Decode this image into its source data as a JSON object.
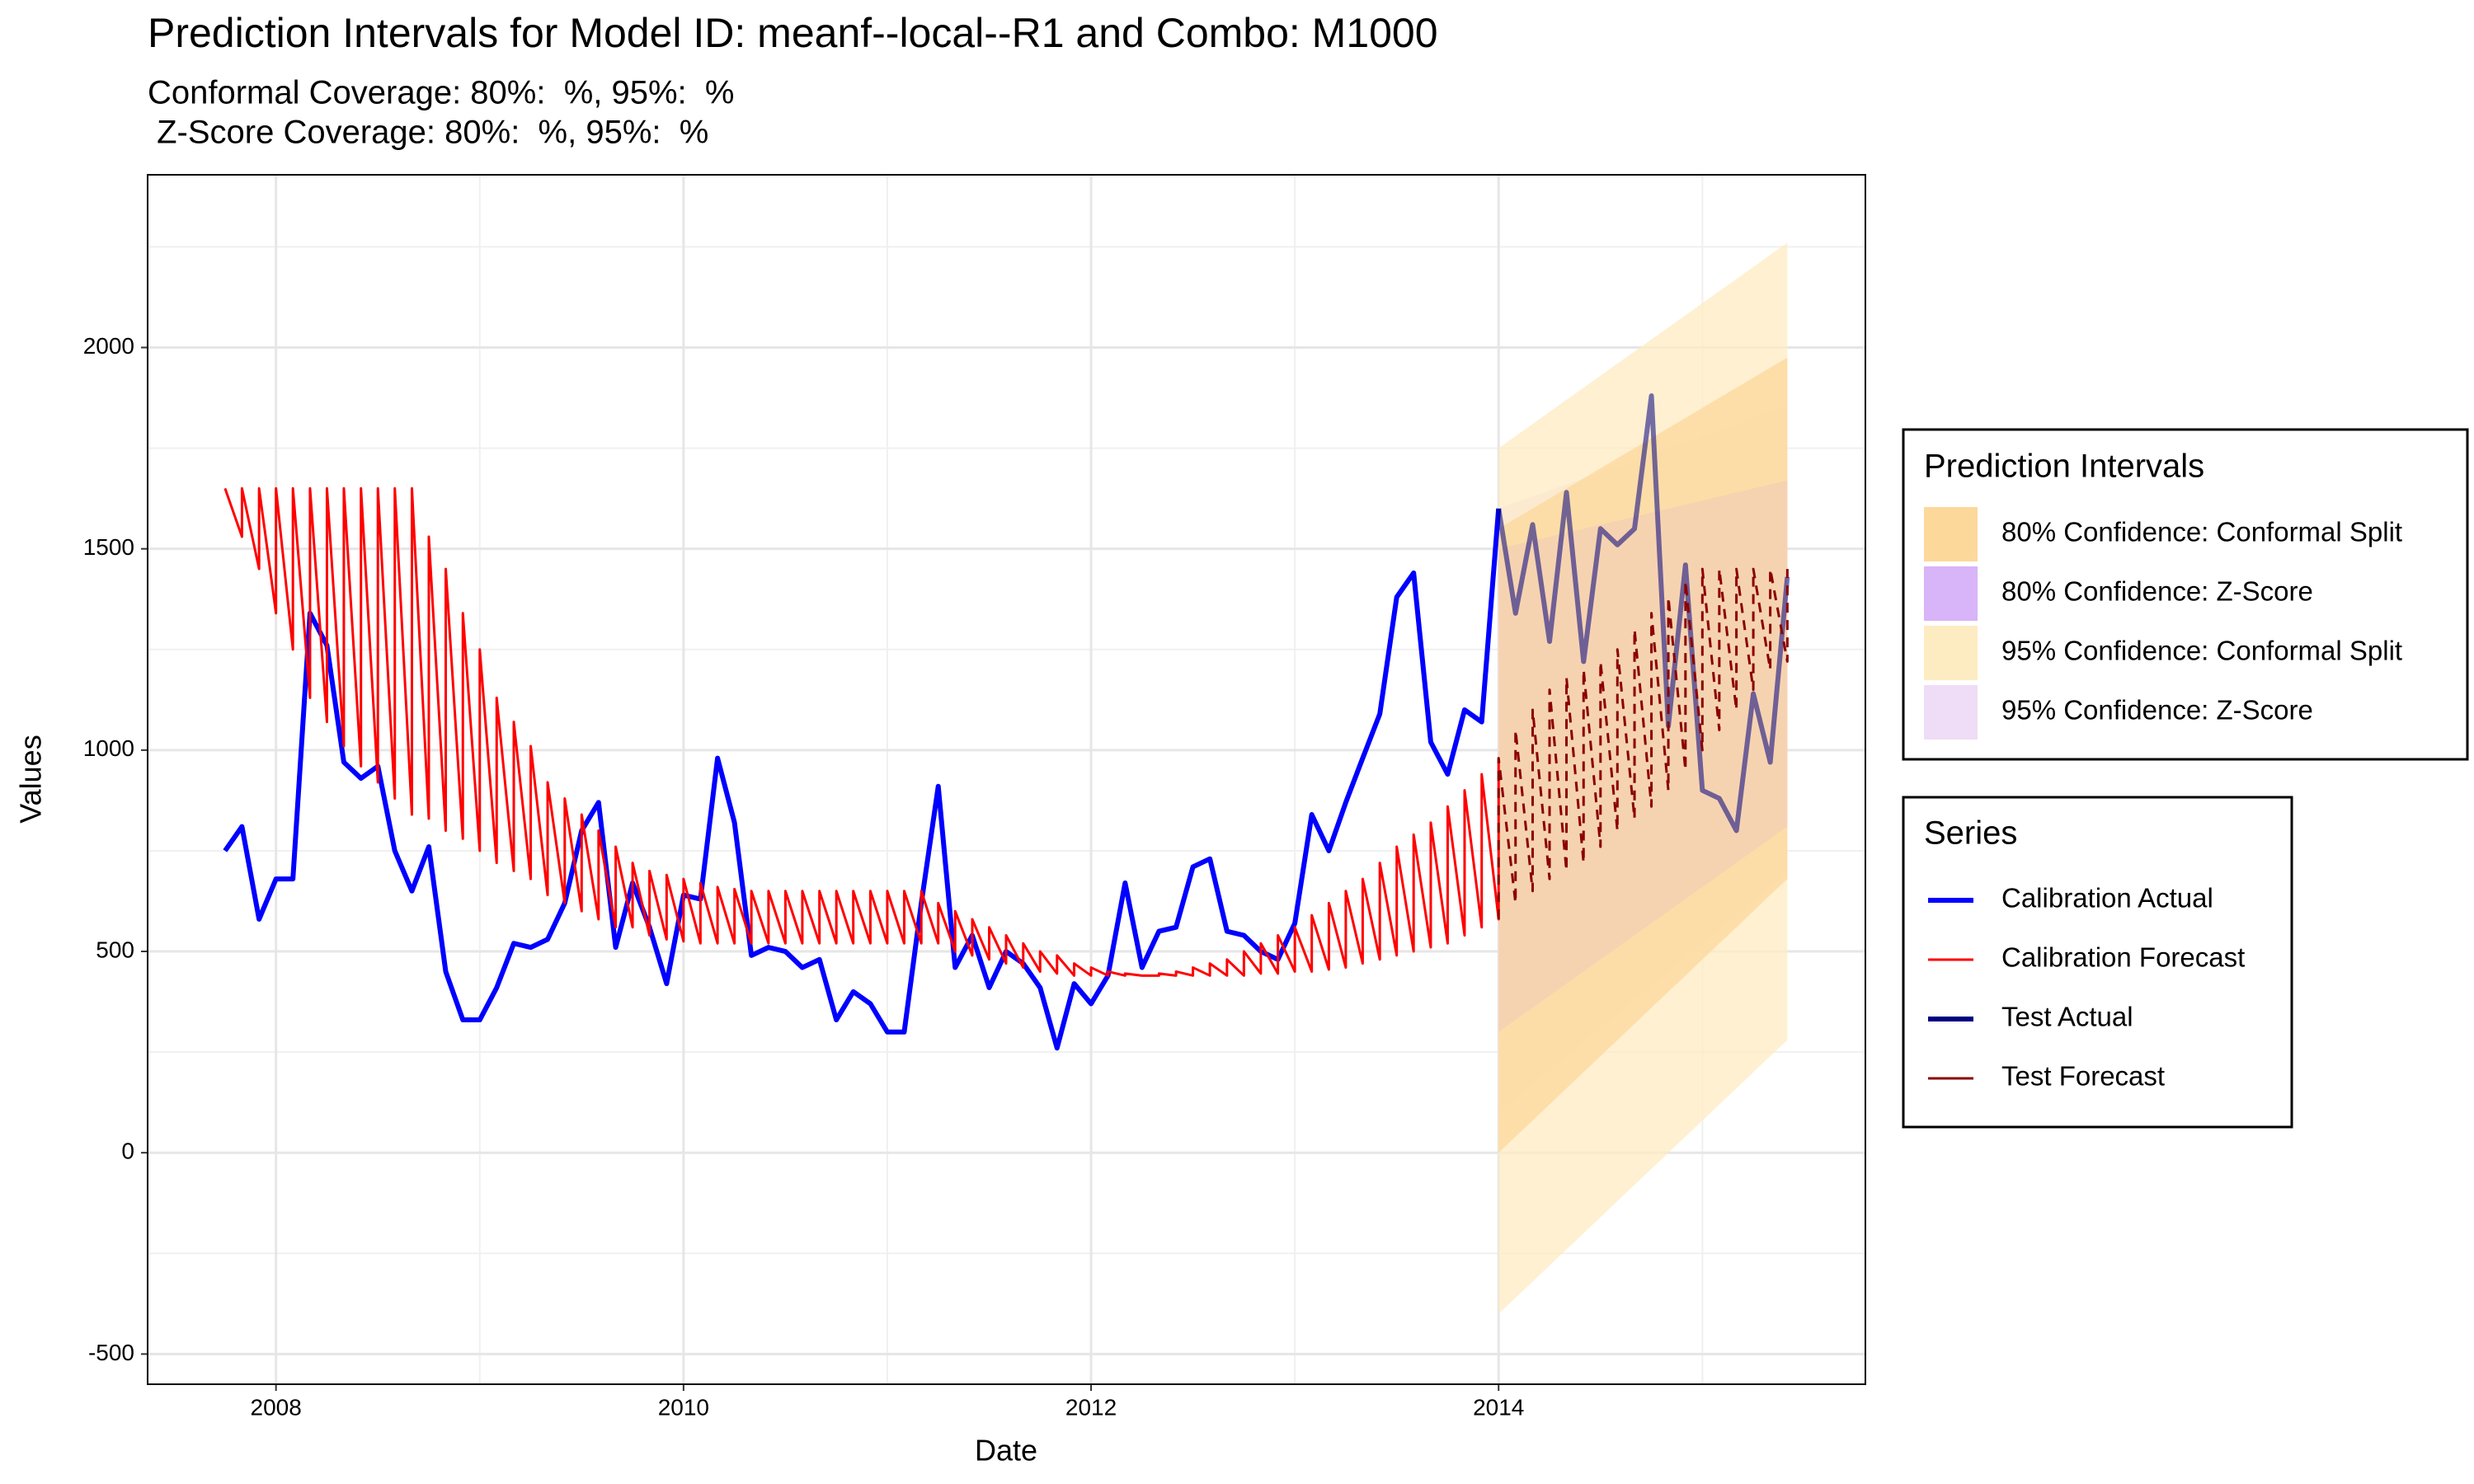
{
  "chart_data": {
    "type": "line",
    "title": "Prediction Intervals for Model ID: meanf--local--R1 and Combo: M1000",
    "subtitle": [
      "Conformal Coverage: 80%:  %, 95%:  %",
      " Z-Score Coverage: 80%:  %, 95%:  %"
    ],
    "x_label": "Date",
    "y_label": "Values",
    "xlim": [
      2007.37,
      2015.8
    ],
    "ylim": [
      -575,
      2429
    ],
    "xticks": [
      2008,
      2010,
      2012,
      2014
    ],
    "yticks": [
      -500,
      0,
      500,
      1000,
      1500,
      2000
    ],
    "grid": true,
    "minor_grid": true,
    "legend_position": "right",
    "interval_legend_title": "Prediction Intervals",
    "series_legend_title": "Series",
    "intervals": [
      {
        "name": "80% Confidence: Conformal Split",
        "color": "#fcd89b",
        "x": [
          2014,
          2014.083,
          2014.167,
          2014.25,
          2014.333,
          2014.417,
          2014.5,
          2014.583,
          2014.667,
          2014.75,
          2014.833,
          2014.917,
          2015,
          2015.083,
          2015.167,
          2015.25,
          2015.333,
          2015.417
        ],
        "lower": [
          0,
          40,
          80,
          120,
          160,
          200,
          240,
          280,
          320,
          360,
          400,
          440,
          480,
          520,
          560,
          600,
          640,
          680
        ],
        "upper": [
          1550,
          1575,
          1600,
          1625,
          1650,
          1675,
          1700,
          1725,
          1750,
          1775,
          1800,
          1825,
          1850,
          1875,
          1900,
          1925,
          1950,
          1975
        ]
      },
      {
        "name": "80% Confidence: Z-Score",
        "color": "#d8b4f8",
        "x": [
          2014,
          2014.083,
          2014.167,
          2014.25,
          2014.333,
          2014.417,
          2014.5,
          2014.583,
          2014.667,
          2014.75,
          2014.833,
          2014.917,
          2015,
          2015.083,
          2015.167,
          2015.25,
          2015.333,
          2015.417
        ],
        "lower": [
          300,
          330,
          360,
          390,
          420,
          450,
          480,
          510,
          540,
          570,
          600,
          630,
          660,
          690,
          720,
          750,
          780,
          810
        ],
        "upper": [
          1500,
          1510,
          1520,
          1530,
          1540,
          1550,
          1560,
          1570,
          1580,
          1590,
          1600,
          1610,
          1620,
          1630,
          1640,
          1650,
          1660,
          1670
        ]
      },
      {
        "name": "95% Confidence: Conformal Split",
        "color": "#fdebc2",
        "x": [
          2014,
          2014.083,
          2014.167,
          2014.25,
          2014.333,
          2014.417,
          2014.5,
          2014.583,
          2014.667,
          2014.75,
          2014.833,
          2014.917,
          2015,
          2015.083,
          2015.167,
          2015.25,
          2015.333,
          2015.417
        ],
        "lower": [
          -400,
          -360,
          -320,
          -280,
          -240,
          -200,
          -160,
          -120,
          -80,
          -40,
          0,
          40,
          80,
          120,
          160,
          200,
          240,
          280
        ],
        "upper": [
          1750,
          1780,
          1810,
          1840,
          1870,
          1900,
          1930,
          1960,
          1990,
          2020,
          2050,
          2080,
          2110,
          2140,
          2170,
          2200,
          2230,
          2260
        ]
      },
      {
        "name": "95% Confidence: Z-Score",
        "color": "#efdcf6",
        "x": [
          2014,
          2014.083,
          2014.167,
          2014.25,
          2014.333,
          2014.417,
          2014.5,
          2014.583,
          2014.667,
          2014.75,
          2014.833,
          2014.917,
          2015,
          2015.083,
          2015.167,
          2015.25,
          2015.333,
          2015.417
        ],
        "lower": [
          100,
          135,
          170,
          205,
          240,
          275,
          310,
          345,
          380,
          415,
          450,
          485,
          520,
          555,
          590,
          625,
          660,
          695
        ],
        "upper": [
          1600,
          1615,
          1630,
          1645,
          1660,
          1675,
          1690,
          1705,
          1720,
          1735,
          1750,
          1765,
          1780,
          1795,
          1810,
          1825,
          1840,
          1855
        ]
      }
    ],
    "series": [
      {
        "name": "Calibration Actual",
        "color": "#0000ff",
        "width": 6,
        "x": [
          2007.75,
          2007.833,
          2007.917,
          2008,
          2008.083,
          2008.167,
          2008.25,
          2008.333,
          2008.417,
          2008.5,
          2008.583,
          2008.667,
          2008.75,
          2008.833,
          2008.917,
          2009,
          2009.083,
          2009.167,
          2009.25,
          2009.333,
          2009.417,
          2009.5,
          2009.583,
          2009.667,
          2009.75,
          2009.833,
          2009.917,
          2010,
          2010.083,
          2010.167,
          2010.25,
          2010.333,
          2010.417,
          2010.5,
          2010.583,
          2010.667,
          2010.75,
          2010.833,
          2010.917,
          2011,
          2011.083,
          2011.167,
          2011.25,
          2011.333,
          2011.417,
          2011.5,
          2011.583,
          2011.667,
          2011.75,
          2011.833,
          2011.917,
          2012,
          2012.083,
          2012.167,
          2012.25,
          2012.333,
          2012.417,
          2012.5,
          2012.583,
          2012.667,
          2012.75,
          2012.833,
          2012.917,
          2013,
          2013.083,
          2013.167,
          2013.25,
          2013.333,
          2013.417,
          2013.5,
          2013.583,
          2013.667,
          2013.75,
          2013.833,
          2013.917,
          2014
        ],
        "values": [
          750,
          810,
          580,
          680,
          680,
          1340,
          1260,
          970,
          930,
          960,
          750,
          650,
          760,
          450,
          330,
          330,
          410,
          520,
          510,
          530,
          620,
          800,
          870,
          510,
          670,
          560,
          420,
          640,
          630,
          980,
          820,
          490,
          510,
          500,
          460,
          480,
          330,
          400,
          370,
          300,
          300,
          620,
          910,
          460,
          540,
          410,
          500,
          470,
          410,
          260,
          420,
          370,
          440,
          670,
          460,
          550,
          560,
          710,
          730,
          550,
          540,
          500,
          480,
          570,
          840,
          750,
          870,
          980,
          1090,
          1380,
          1440,
          1020,
          940,
          1100,
          1070,
          1600
        ]
      },
      {
        "name": "Calibration Forecast",
        "color": "#ff0000",
        "width": 3,
        "x": [
          2007.75,
          2007.833,
          2007.833,
          2007.917,
          2007.917,
          2008,
          2008,
          2008.083,
          2008.083,
          2008.167,
          2008.167,
          2008.25,
          2008.25,
          2008.333,
          2008.333,
          2008.417,
          2008.417,
          2008.5,
          2008.5,
          2008.583,
          2008.583,
          2008.667,
          2008.667,
          2008.75,
          2008.75,
          2008.833,
          2008.833,
          2008.917,
          2008.917,
          2009,
          2009,
          2009.083,
          2009.083,
          2009.167,
          2009.167,
          2009.25,
          2009.25,
          2009.333,
          2009.333,
          2009.417,
          2009.417,
          2009.5,
          2009.5,
          2009.583,
          2009.583,
          2009.667,
          2009.667,
          2009.75,
          2009.75,
          2009.833,
          2009.833,
          2009.917,
          2009.917,
          2010,
          2010,
          2010.083,
          2010.083,
          2010.167,
          2010.167,
          2010.25,
          2010.25,
          2010.333,
          2010.333,
          2010.417,
          2010.417,
          2010.5,
          2010.5,
          2010.583,
          2010.583,
          2010.667,
          2010.667,
          2010.75,
          2010.75,
          2010.833,
          2010.833,
          2010.917,
          2010.917,
          2011,
          2011,
          2011.083,
          2011.083,
          2011.167,
          2011.167,
          2011.25,
          2011.25,
          2011.333,
          2011.333,
          2011.417,
          2011.417,
          2011.5,
          2011.5,
          2011.583,
          2011.583,
          2011.667,
          2011.667,
          2011.75,
          2011.75,
          2011.833,
          2011.833,
          2011.917,
          2011.917,
          2012,
          2012,
          2012.083,
          2012.083,
          2012.167,
          2012.167,
          2012.25,
          2012.25,
          2012.333,
          2012.333,
          2012.417,
          2012.417,
          2012.5,
          2012.5,
          2012.583,
          2012.583,
          2012.667,
          2012.667,
          2012.75,
          2012.75,
          2012.833,
          2012.833,
          2012.917,
          2012.917,
          2013,
          2013,
          2013.083,
          2013.083,
          2013.167,
          2013.167,
          2013.25,
          2013.25,
          2013.333,
          2013.333,
          2013.417,
          2013.417,
          2013.5,
          2013.5,
          2013.583,
          2013.583,
          2013.667,
          2013.667,
          2013.75,
          2013.75,
          2013.833,
          2013.833,
          2013.917,
          2013.917,
          2014,
          2014
        ],
        "values": [
          1650,
          1530,
          1650,
          1450,
          1650,
          1340,
          1650,
          1250,
          1650,
          1130,
          1650,
          1070,
          1650,
          1010,
          1650,
          960,
          1650,
          920,
          1650,
          880,
          1650,
          840,
          1650,
          830,
          1530,
          800,
          1450,
          780,
          1340,
          750,
          1250,
          720,
          1130,
          700,
          1070,
          680,
          1010,
          640,
          920,
          620,
          880,
          600,
          840,
          580,
          800,
          560,
          760,
          560,
          720,
          540,
          700,
          530,
          690,
          525,
          680,
          520,
          670,
          520,
          660,
          520,
          655,
          520,
          650,
          520,
          650,
          520,
          650,
          520,
          650,
          520,
          650,
          520,
          650,
          520,
          650,
          520,
          650,
          520,
          650,
          520,
          650,
          520,
          650,
          520,
          620,
          500,
          600,
          490,
          580,
          480,
          560,
          470,
          540,
          460,
          520,
          450,
          500,
          445,
          490,
          440,
          470,
          440,
          460,
          440,
          450,
          440,
          445,
          440,
          440,
          440,
          445,
          440,
          450,
          440,
          460,
          440,
          470,
          440,
          480,
          440,
          500,
          445,
          520,
          445,
          540,
          450,
          560,
          450,
          590,
          455,
          620,
          460,
          650,
          470,
          680,
          480,
          720,
          490,
          760,
          500,
          790,
          510,
          820,
          520,
          860,
          540,
          900,
          560,
          940,
          580,
          980
        ]
      },
      {
        "name": "Test Actual",
        "color": "#000080",
        "width": 6,
        "x": [
          2014,
          2014.083,
          2014.167,
          2014.25,
          2014.333,
          2014.417,
          2014.5,
          2014.583,
          2014.667,
          2014.75,
          2014.833,
          2014.917,
          2015,
          2015.083,
          2015.167,
          2015.25,
          2015.333,
          2015.417
        ],
        "values": [
          1600,
          1340,
          1560,
          1270,
          1640,
          1220,
          1550,
          1510,
          1550,
          1880,
          1060,
          1460,
          900,
          880,
          800,
          1140,
          970,
          1430
        ]
      },
      {
        "name": "Test Forecast",
        "color": "#8b0000",
        "width": 3,
        "dashed": true,
        "x": [
          2014,
          2014,
          2014.083,
          2014.083,
          2014.167,
          2014.167,
          2014.25,
          2014.25,
          2014.333,
          2014.333,
          2014.417,
          2014.417,
          2014.5,
          2014.5,
          2014.583,
          2014.583,
          2014.667,
          2014.667,
          2014.75,
          2014.75,
          2014.833,
          2014.833,
          2014.917,
          2014.917,
          2015,
          2015,
          2015.083,
          2015.083,
          2015.167,
          2015.167,
          2015.25,
          2015.25,
          2015.333,
          2015.333,
          2015.417,
          2015.417
        ],
        "values": [
          580,
          980,
          620,
          1050,
          650,
          1100,
          680,
          1150,
          700,
          1180,
          720,
          1200,
          760,
          1220,
          800,
          1250,
          830,
          1300,
          860,
          1340,
          900,
          1380,
          950,
          1420,
          1000,
          1450,
          1050,
          1450,
          1100,
          1450,
          1150,
          1450,
          1200,
          1450,
          1220,
          1450
        ]
      }
    ]
  }
}
